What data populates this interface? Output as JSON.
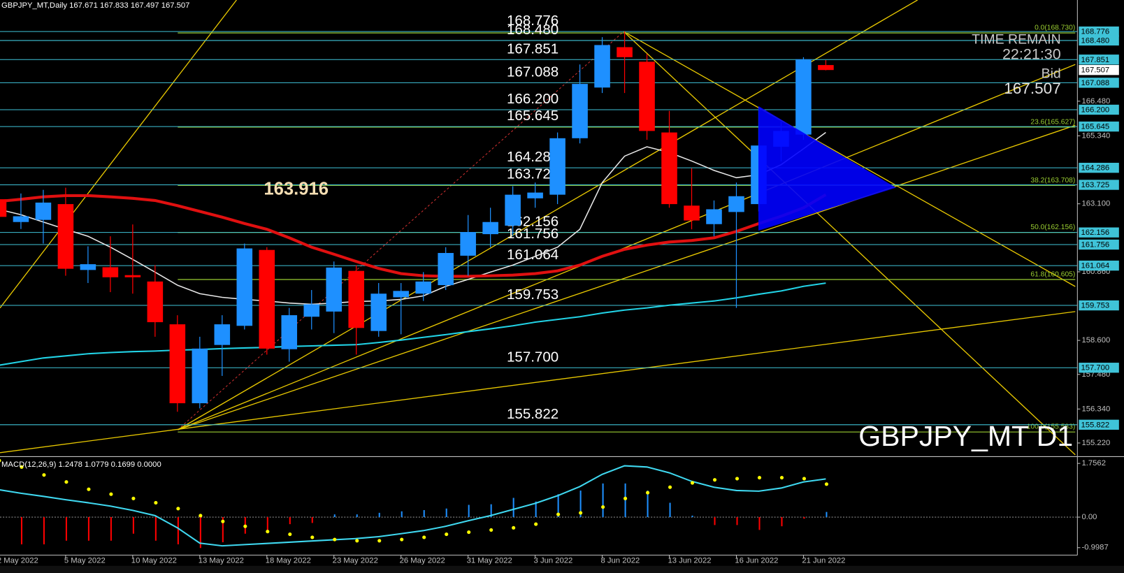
{
  "chart_data": [
    {
      "type": "candlestick",
      "title": "GBPJPY_MT,Daily  167.671 167.833 167.497 167.507",
      "symbol_label": "GBPJPY_MT D1",
      "time_remain_label": "TIME REMAIN",
      "time_remain": "22:21:30",
      "bid_label": "Bid",
      "bid": {
        "value": 167.507,
        "label": "167.507"
      },
      "annotation": "163.916",
      "ylim": [
        154.807,
        169.814
      ],
      "yticks": [
        {
          "value": 166.48,
          "label": "166.480"
        },
        {
          "value": 165.34,
          "label": "165.340"
        },
        {
          "value": 163.1,
          "label": "163.100"
        },
        {
          "value": 160.86,
          "label": "160.860"
        },
        {
          "value": 158.6,
          "label": "158.600"
        },
        {
          "value": 157.48,
          "label": "157.480"
        },
        {
          "value": 156.34,
          "label": "156.340"
        },
        {
          "value": 155.22,
          "label": "155.220"
        }
      ],
      "up_color": "#1e90ff",
      "down_color": "#ff0000",
      "open": [
        163.25,
        162.5,
        162.57,
        163.09,
        160.92,
        161.01,
        160.75,
        160.54,
        159.13,
        156.53,
        158.45,
        159.08,
        161.58,
        158.31,
        159.38,
        159.55,
        160.89,
        158.91,
        160.02,
        160.14,
        160.42,
        161.39,
        162.1,
        162.38,
        163.28,
        163.4,
        165.26,
        166.93,
        168.26,
        167.78,
        165.45,
        163.04,
        162.43,
        162.83,
        163.09,
        164.98,
        165.38,
        167.671
      ],
      "high": [
        163.4,
        163.44,
        163.56,
        163.63,
        161.7,
        162.03,
        162.42,
        161.08,
        159.43,
        158.72,
        159.43,
        161.79,
        161.67,
        159.67,
        160.26,
        161.2,
        161.08,
        160.49,
        160.49,
        160.85,
        161.67,
        162.73,
        162.97,
        163.68,
        163.8,
        165.45,
        167.69,
        168.59,
        168.78,
        168.04,
        166.16,
        164.27,
        163.21,
        163.8,
        166.27,
        165.8,
        167.93,
        167.833
      ],
      "low": [
        162.6,
        162.27,
        161.79,
        160.73,
        160.49,
        160.19,
        160.14,
        158.72,
        156.25,
        156.36,
        157.43,
        158.96,
        158.13,
        157.9,
        158.96,
        158.84,
        158.13,
        158.72,
        158.8,
        159.9,
        160.26,
        160.73,
        161.67,
        162.03,
        162.97,
        163.09,
        165.09,
        166.75,
        166.75,
        165.21,
        162.97,
        162.26,
        162.03,
        159.67,
        162.85,
        164.5,
        165.21,
        167.497
      ],
      "close": [
        162.67,
        162.69,
        163.14,
        160.96,
        161.11,
        160.68,
        160.68,
        159.2,
        156.53,
        158.33,
        159.13,
        161.63,
        158.33,
        159.43,
        159.79,
        161.0,
        159.01,
        160.14,
        160.23,
        160.54,
        161.48,
        162.17,
        162.5,
        163.4,
        163.47,
        165.26,
        167.05,
        168.33,
        167.93,
        165.5,
        163.09,
        162.55,
        162.92,
        163.35,
        165.02,
        165.5,
        167.86,
        167.507
      ],
      "lines": [
        {
          "color": "#22d3e6",
          "width": 2,
          "values": [
            157.78,
            157.9,
            158.02,
            158.09,
            158.16,
            158.2,
            158.23,
            158.25,
            158.28,
            158.3,
            158.33,
            158.35,
            158.37,
            158.4,
            158.42,
            158.44,
            158.46,
            158.53,
            158.61,
            158.7,
            158.79,
            158.89,
            158.98,
            159.08,
            159.2,
            159.29,
            159.38,
            159.5,
            159.6,
            159.67,
            159.76,
            159.83,
            159.9,
            160.0,
            160.12,
            160.23,
            160.38,
            160.49
          ]
        },
        {
          "color": "#e8e8e8",
          "width": 1.5,
          "values": [
            162.92,
            162.74,
            162.5,
            162.26,
            162.03,
            161.67,
            161.27,
            160.85,
            160.42,
            160.14,
            160.02,
            159.95,
            159.9,
            159.83,
            159.79,
            159.83,
            159.88,
            159.9,
            159.95,
            160.07,
            160.38,
            160.61,
            160.85,
            161.08,
            161.37,
            161.67,
            162.26,
            163.8,
            164.67,
            164.98,
            164.79,
            164.51,
            164.2,
            163.96,
            164.06,
            164.39,
            164.91,
            165.45
          ]
        },
        {
          "color": "#e01010",
          "width": 4,
          "values": [
            163.18,
            163.25,
            163.33,
            163.37,
            163.37,
            163.33,
            163.28,
            163.21,
            163.04,
            162.85,
            162.66,
            162.45,
            162.26,
            161.98,
            161.67,
            161.44,
            161.2,
            160.97,
            160.8,
            160.73,
            160.71,
            160.71,
            160.73,
            160.75,
            160.8,
            160.89,
            161.08,
            161.37,
            161.6,
            161.74,
            161.84,
            161.89,
            161.98,
            162.19,
            162.45,
            162.69,
            162.97,
            163.4
          ]
        }
      ],
      "level_color": "#3fc3d8",
      "levels": [
        {
          "value": 168.776,
          "label": "168.776"
        },
        {
          "value": 168.48,
          "label": "168.480"
        },
        {
          "value": 167.851,
          "label": "167.851"
        },
        {
          "value": 167.088,
          "label": "167.088"
        },
        {
          "value": 166.2,
          "label": "166.200"
        },
        {
          "value": 165.645,
          "label": "165.645"
        },
        {
          "value": 164.286,
          "label": "164.286"
        },
        {
          "value": 163.725,
          "label": "163.725"
        },
        {
          "value": 162.156,
          "label": "162.156"
        },
        {
          "value": 161.756,
          "label": "161.756"
        },
        {
          "value": 161.064,
          "label": "161.064"
        },
        {
          "value": 159.753,
          "label": "159.753"
        },
        {
          "value": 157.7,
          "label": "157.700"
        },
        {
          "value": 155.822,
          "label": "155.822"
        }
      ],
      "fib_color": "#9acd32",
      "fib_levels": [
        {
          "value": 168.73,
          "label": "0.0(168.730)"
        },
        {
          "value": 165.627,
          "label": "23.6(165.627)"
        },
        {
          "value": 163.708,
          "label": "38.2(163.708)"
        },
        {
          "value": 162.156,
          "label": "50.0(162.156)"
        },
        {
          "value": 160.605,
          "label": "61.8(160.605)"
        },
        {
          "value": 155.583,
          "label": "100.0(155.583)"
        }
      ]
    },
    {
      "type": "macd",
      "title": "MACD(12,26,9) 1.2478 1.0779 0.1699 0.0000",
      "ylim": [
        -1.241,
        1.967
      ],
      "yticks": [
        1.7562,
        {
          "value": 0,
          "label": "0.00"
        },
        -0.9987
      ],
      "categories": [
        "2 May 2022",
        null,
        null,
        "5 May 2022",
        null,
        null,
        "10 May 2022",
        null,
        null,
        "13 May 2022",
        null,
        null,
        "18 May 2022",
        null,
        null,
        "23 May 2022",
        null,
        null,
        "26 May 2022",
        null,
        null,
        "31 May 2022",
        null,
        null,
        "3 Jun 2022",
        null,
        null,
        "8 Jun 2022",
        null,
        null,
        "13 Jun 2022",
        null,
        null,
        "16 Jun 2022",
        null,
        null,
        "21 Jun 2022",
        null
      ],
      "up_color": "#1e90ff",
      "down_color": "#ff0000",
      "histogram": [
        -0.8,
        -0.89,
        -0.89,
        -0.77,
        -0.77,
        -0.77,
        -0.54,
        -0.77,
        -0.89,
        -1.01,
        -0.82,
        -0.54,
        -0.42,
        -0.23,
        -0.19,
        0.09,
        0.09,
        0.14,
        0.19,
        0.23,
        0.28,
        0.4,
        0.42,
        0.63,
        0.51,
        0.75,
        0.87,
        1.1,
        1.1,
        0.87,
        0.47,
        0.05,
        -0.26,
        -0.26,
        -0.42,
        -0.3,
        -0.05,
        0.1699
      ],
      "line_color": "#3fd8f0",
      "line": [
        0.9,
        0.78,
        0.68,
        0.57,
        0.47,
        0.36,
        0.22,
        0.05,
        -0.35,
        -0.85,
        -0.94,
        -0.9,
        -0.86,
        -0.82,
        -0.78,
        -0.74,
        -0.7,
        -0.64,
        -0.54,
        -0.44,
        -0.3,
        -0.12,
        0.05,
        0.25,
        0.45,
        0.7,
        1.0,
        1.4,
        1.68,
        1.64,
        1.45,
        1.17,
        0.98,
        0.87,
        0.85,
        0.95,
        1.15,
        1.2478
      ],
      "signal_color": "#ffff00",
      "signal": [
        1.85,
        1.64,
        1.38,
        1.15,
        0.91,
        0.75,
        0.61,
        0.47,
        0.28,
        0.05,
        -0.14,
        -0.3,
        -0.47,
        -0.56,
        -0.66,
        -0.73,
        -0.77,
        -0.77,
        -0.73,
        -0.66,
        -0.56,
        -0.49,
        -0.42,
        -0.35,
        -0.23,
        0.09,
        0.14,
        0.33,
        0.61,
        0.8,
        0.98,
        1.12,
        1.22,
        1.26,
        1.29,
        1.29,
        1.26,
        1.0779
      ]
    }
  ]
}
